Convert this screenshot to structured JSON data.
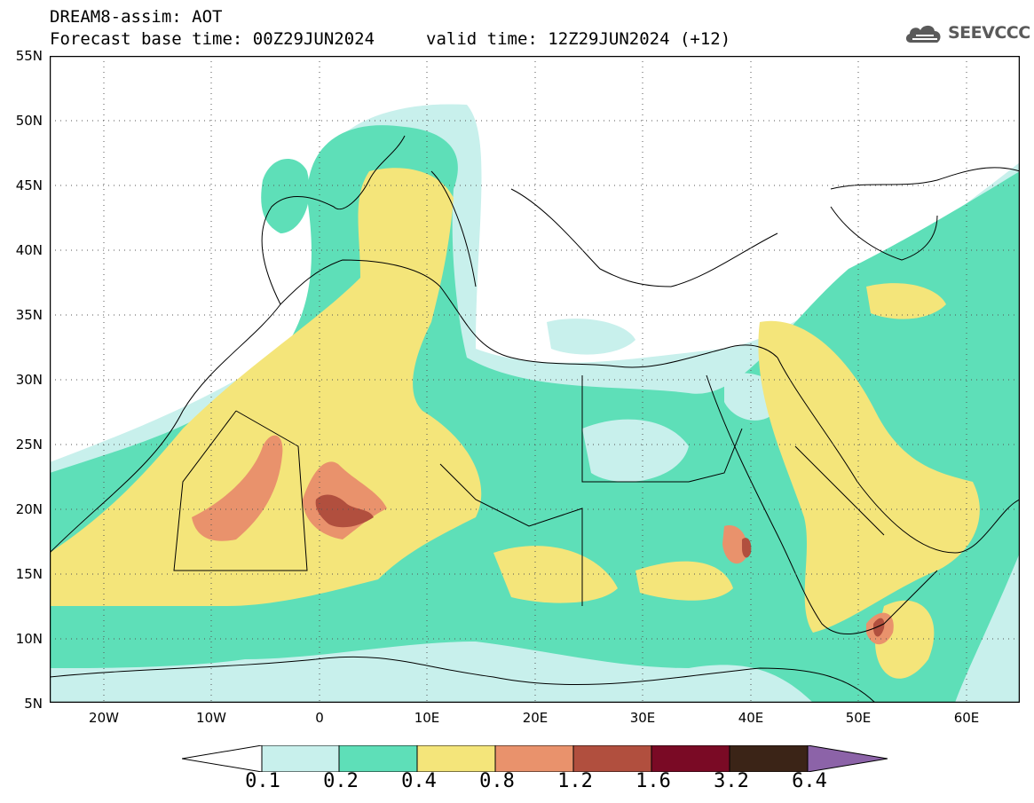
{
  "header": {
    "title_line1": "DREAM8-assim: AOT",
    "base_time": "Forecast base time: 00Z29JUN2024",
    "valid_time": "valid time: 12Z29JUN2024 (+12)"
  },
  "logo": {
    "text": "SEEVCCC",
    "icon": "cloud-icon",
    "color": "#5a5a5a"
  },
  "map": {
    "lon_range": [
      -25,
      65
    ],
    "lat_range": [
      5,
      55
    ],
    "lat_labels": [
      "55N",
      "50N",
      "45N",
      "40N",
      "35N",
      "30N",
      "25N",
      "20N",
      "15N",
      "10N",
      "5N"
    ],
    "lon_labels": [
      "20W",
      "10W",
      "0",
      "10E",
      "20E",
      "30E",
      "40E",
      "50E",
      "60E"
    ],
    "gridlines": "dotted"
  },
  "colorbar": {
    "colors": [
      "#ffffff",
      "#c8f0ec",
      "#5edfb8",
      "#f4e57a",
      "#e9926c",
      "#b14f3e",
      "#7a0a25",
      "#3b2417",
      "#8c63a8"
    ],
    "labels": [
      "0.1",
      "0.2",
      "0.4",
      "0.8",
      "1.2",
      "1.6",
      "3.2",
      "6.4"
    ]
  }
}
